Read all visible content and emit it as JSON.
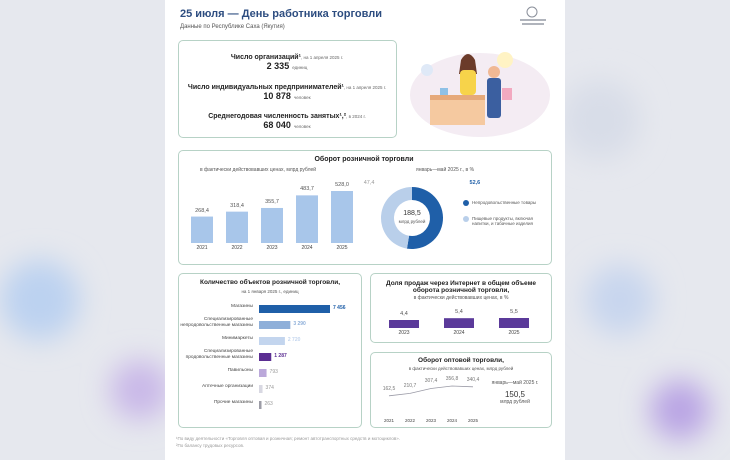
{
  "header": {
    "title": "25 июля — День работника торговли",
    "subtitle": "Данные по Республике Саха (Якутия)"
  },
  "stats": [
    {
      "label": "Число организаций¹",
      "note": ", на 1 апреля 2025 г.",
      "value": "2 335",
      "unit": "единиц"
    },
    {
      "label": "Число индивидуальных предпринимателей¹",
      "note": ", на 1 апреля 2025 г.",
      "value": "10 878",
      "unit": "человек"
    },
    {
      "label": "Среднегодовая численность занятых¹,²",
      "note": ", в 2024 г.",
      "value": "68 040",
      "unit": "человек"
    }
  ],
  "chart_data": [
    {
      "type": "bar",
      "title": "Оборот розничной торговли",
      "subtitle": "в фактически действовавших ценах, млрд рублей",
      "categories": [
        "2021",
        "2022",
        "2023",
        "2024",
        "2025"
      ],
      "values": [
        268.4,
        318.4,
        355.7,
        483.7,
        528.0
      ],
      "value_labels": [
        "268,4",
        "318,4",
        "355,7",
        "483,7",
        "528,0"
      ],
      "color": "#a8c6ea"
    },
    {
      "type": "pie",
      "subtitle": "январь—май 2025 г., в %",
      "categories": [
        "Непродовольственные товары",
        "Пищевые продукты, включая напитки, и табачные изделия"
      ],
      "values": [
        52.6,
        47.4
      ],
      "value_labels": [
        "52,6",
        "47,4"
      ],
      "colors": [
        "#1f5fa8",
        "#b9cfea"
      ],
      "center_value": "188,5",
      "center_unit": "млрд рублей"
    },
    {
      "type": "hbar",
      "title": "Количество объектов розничной торговли,",
      "subtitle": "на 1 января 2025 г., единиц",
      "categories": [
        "Магазины",
        "Специализированные непродовольственные магазины",
        "Минимаркеты",
        "Специализированные продовольственные магазины",
        "Павильоны",
        "Аптечные организации",
        "Прочие магазины"
      ],
      "values": [
        7456,
        3290,
        2720,
        1287,
        793,
        374,
        263
      ],
      "value_labels": [
        "7 456",
        "3 290",
        "2 720",
        "1 287",
        "793",
        "374",
        "263"
      ],
      "colors": [
        "#1f5fa8",
        "#8eafd9",
        "#c3d5ee",
        "#5b2e92",
        "#bba8da",
        "#d8d8e2",
        "#9c9ca6"
      ]
    },
    {
      "type": "bar",
      "title": "Доля продаж через Интернет в общем объеме оборота розничной торговли,",
      "subtitle": "в фактически действовавших ценах, в %",
      "categories": [
        "2023",
        "2024",
        "2025"
      ],
      "values": [
        4.4,
        5.4,
        5.5
      ],
      "value_labels": [
        "4,4",
        "5,4",
        "5,5"
      ],
      "color": "#5b3a9a"
    },
    {
      "type": "line",
      "title": "Оборот оптовой торговли,",
      "subtitle": "в фактически действовавших ценах, млрд рублей",
      "categories": [
        "2021",
        "2022",
        "2023",
        "2024",
        "2025"
      ],
      "values": [
        162.5,
        210.7,
        307.4,
        356.8,
        340.4
      ],
      "value_labels": [
        "162,5",
        "210,7",
        "307,4",
        "356,8",
        "340,4"
      ],
      "color": "#9a9aa6",
      "note": "январь—май 2025 г.",
      "note_value": "150,5",
      "note_unit": "млрд рублей"
    }
  ],
  "footnotes": [
    "¹По виду деятельности «Торговля оптовая и розничная; ремонт автотранспортных средств и мотоциклов».",
    "²По балансу трудовых ресурсов."
  ]
}
